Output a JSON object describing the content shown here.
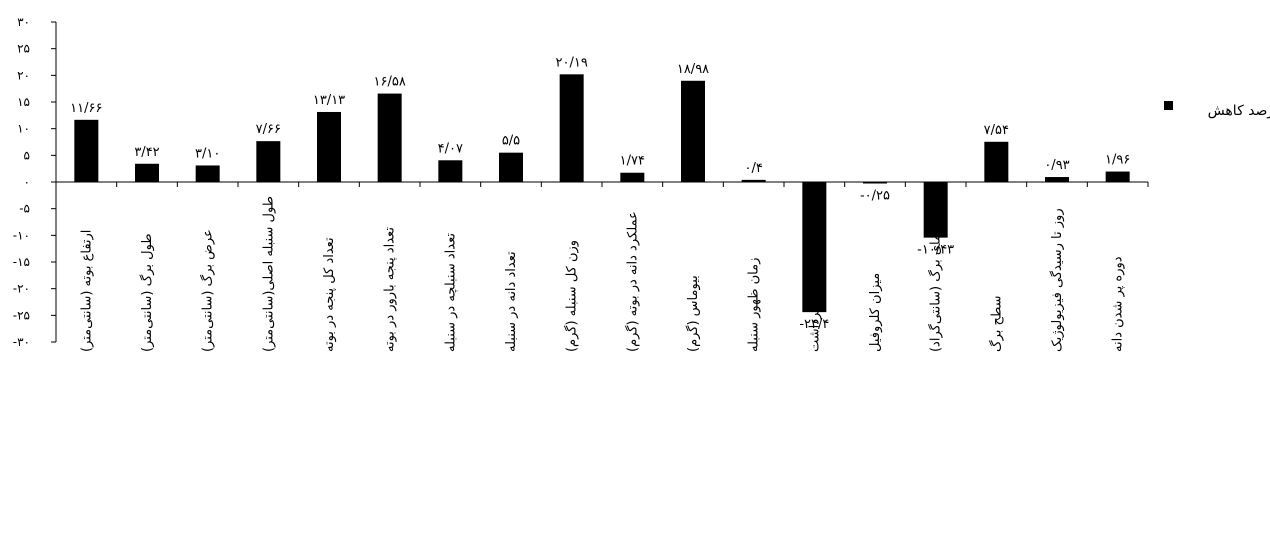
{
  "chart_data": {
    "type": "bar",
    "categories": [
      "ارتفاع بوته (سانتی‌متر)",
      "طول برگ (سانتی‌متر)",
      "عرض برگ (سانتی‌متر)",
      "طول سنبله اصلی(سانتی‌متر)",
      "تعداد کل پنجه در بوته",
      "تعداد پنجه بارور در بوته",
      "تعداد سنبلچه در سنبله",
      "تعداد دانه در سنبله",
      "وزن کل سنبله (گرم)",
      "عملکرد دانه در بوته (گرم)",
      "بیوماس (گرم)",
      "زمان ظهور سنبله",
      "شاخص برداشت",
      "میزان کلروفیل",
      "دمای برگ (سانتی‌گراد)",
      "سطح برگ",
      "روز تا رسیدگی فیزیولوژیک",
      "دوره پر شدن دانه"
    ],
    "series": [
      {
        "name": "درصد کاهش",
        "values": [
          11.66,
          3.42,
          3.1,
          7.66,
          13.13,
          16.58,
          4.07,
          5.5,
          20.19,
          1.74,
          18.98,
          0.4,
          -24.4,
          -0.25,
          -10.43,
          7.54,
          0.93,
          1.96
        ],
        "labels": [
          "۱۱/۶۶",
          "۳/۴۲",
          "۳/۱۰",
          "۷/۶۶",
          "۱۳/۱۳",
          "۱۶/۵۸",
          "۴/۰۷",
          "۵/۵",
          "۲۰/۱۹",
          "۱/۷۴",
          "۱۸/۹۸",
          "۰/۴",
          "-۲۴/۴",
          "-۰/۲۵",
          "-۱۰/۴۳",
          "۷/۵۴",
          "۰/۹۳",
          "۱/۹۶"
        ],
        "color": "#000000"
      }
    ],
    "ylim": [
      -30,
      30
    ],
    "y_ticks": [
      30,
      25,
      20,
      15,
      10,
      5,
      0,
      -5,
      -10,
      -15,
      -20,
      -25,
      -30
    ],
    "y_tick_labels": [
      "۳۰",
      "۲۵",
      "۲۰",
      "۱۵",
      "۱۰",
      "۵",
      "۰",
      "-۵",
      "-۱۰",
      "-۱۵",
      "-۲۰",
      "-۲۵",
      "-۳۰"
    ],
    "legend": {
      "position": "right",
      "label": "درصد کاهش"
    },
    "grid": false,
    "title": "",
    "xlabel": "",
    "ylabel": ""
  }
}
